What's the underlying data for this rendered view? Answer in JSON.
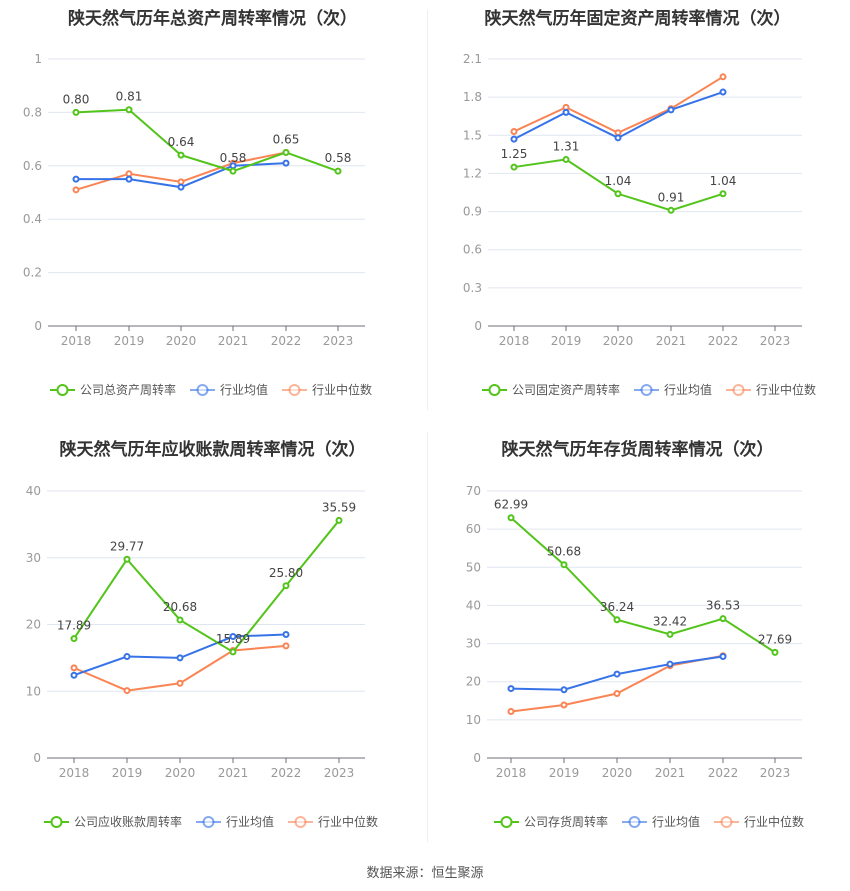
{
  "source": "数据来源：恒生聚源",
  "colors": {
    "company": "#52c41a",
    "avg": "#3773e8",
    "median": "#fa8454",
    "grid": "#e0e6f1",
    "axis": "#6e7079"
  },
  "chart_data": [
    {
      "type": "line",
      "title": "陕天然气历年总资产周转率情况（次）",
      "categories": [
        "2018",
        "2019",
        "2020",
        "2021",
        "2022",
        "2023"
      ],
      "ylim": [
        0,
        1
      ],
      "yticks": [
        0,
        0.2,
        0.4,
        0.6,
        0.8,
        1
      ],
      "yticklabels": [
        "0",
        "0.2",
        "0.4",
        "0.6",
        "0.8",
        "1"
      ],
      "series": [
        {
          "name": "公司总资产周转率",
          "values": [
            0.8,
            0.81,
            0.64,
            0.58,
            0.65,
            0.58
          ],
          "labels": [
            "0.80",
            "0.81",
            "0.64",
            "0.58",
            "0.65",
            "0.58"
          ]
        },
        {
          "name": "行业均值",
          "values": [
            0.55,
            0.55,
            0.52,
            0.6,
            0.61,
            null
          ]
        },
        {
          "name": "行业中位数",
          "values": [
            0.51,
            0.57,
            0.54,
            0.61,
            0.65,
            null
          ]
        }
      ]
    },
    {
      "type": "line",
      "title": "陕天然气历年固定资产周转率情况（次）",
      "categories": [
        "2018",
        "2019",
        "2020",
        "2021",
        "2022",
        "2023"
      ],
      "ylim": [
        0,
        2.1
      ],
      "yticks": [
        0,
        0.3,
        0.6,
        0.9,
        1.2,
        1.5,
        1.8,
        2.1
      ],
      "yticklabels": [
        "0",
        "0.3",
        "0.6",
        "0.9",
        "1.2",
        "1.5",
        "1.8",
        "2.1"
      ],
      "series": [
        {
          "name": "公司固定资产周转率",
          "values": [
            1.25,
            1.31,
            1.04,
            0.91,
            1.04,
            null
          ],
          "labels": [
            "1.25",
            "1.31",
            "1.04",
            "0.91",
            "1.04",
            null
          ]
        },
        {
          "name": "行业均值",
          "values": [
            1.47,
            1.68,
            1.48,
            1.7,
            1.84,
            null
          ]
        },
        {
          "name": "行业中位数",
          "values": [
            1.53,
            1.72,
            1.52,
            1.71,
            1.96,
            null
          ]
        }
      ]
    },
    {
      "type": "line",
      "title": "陕天然气历年应收账款周转率情况（次）",
      "categories": [
        "2018",
        "2019",
        "2020",
        "2021",
        "2022",
        "2023"
      ],
      "ylim": [
        0,
        40
      ],
      "yticks": [
        0,
        10,
        20,
        30,
        40
      ],
      "yticklabels": [
        "0",
        "10",
        "20",
        "30",
        "40"
      ],
      "series": [
        {
          "name": "公司应收账款周转率",
          "values": [
            17.89,
            29.77,
            20.68,
            15.89,
            25.8,
            35.59
          ],
          "labels": [
            "17.89",
            "29.77",
            "20.68",
            "15.89",
            "25.80",
            "35.59"
          ]
        },
        {
          "name": "行业均值",
          "values": [
            12.4,
            15.2,
            15.0,
            18.2,
            18.5,
            null
          ]
        },
        {
          "name": "行业中位数",
          "values": [
            13.5,
            10.1,
            11.2,
            16.1,
            16.8,
            null
          ]
        }
      ]
    },
    {
      "type": "line",
      "title": "陕天然气历年存货周转率情况（次）",
      "categories": [
        "2018",
        "2019",
        "2020",
        "2021",
        "2022",
        "2023"
      ],
      "ylim": [
        0,
        70
      ],
      "yticks": [
        0,
        10,
        20,
        30,
        40,
        50,
        60,
        70
      ],
      "yticklabels": [
        "0",
        "10",
        "20",
        "30",
        "40",
        "50",
        "60",
        "70"
      ],
      "series": [
        {
          "name": "公司存货周转率",
          "values": [
            62.99,
            50.68,
            36.24,
            32.42,
            36.53,
            27.69
          ],
          "labels": [
            "62.99",
            "50.68",
            "36.24",
            "32.42",
            "36.53",
            "27.69"
          ]
        },
        {
          "name": "行业均值",
          "values": [
            18.2,
            17.9,
            22.0,
            24.6,
            26.6,
            null
          ]
        },
        {
          "name": "行业中位数",
          "values": [
            12.2,
            13.9,
            16.9,
            24.2,
            26.8,
            null
          ]
        }
      ]
    }
  ]
}
